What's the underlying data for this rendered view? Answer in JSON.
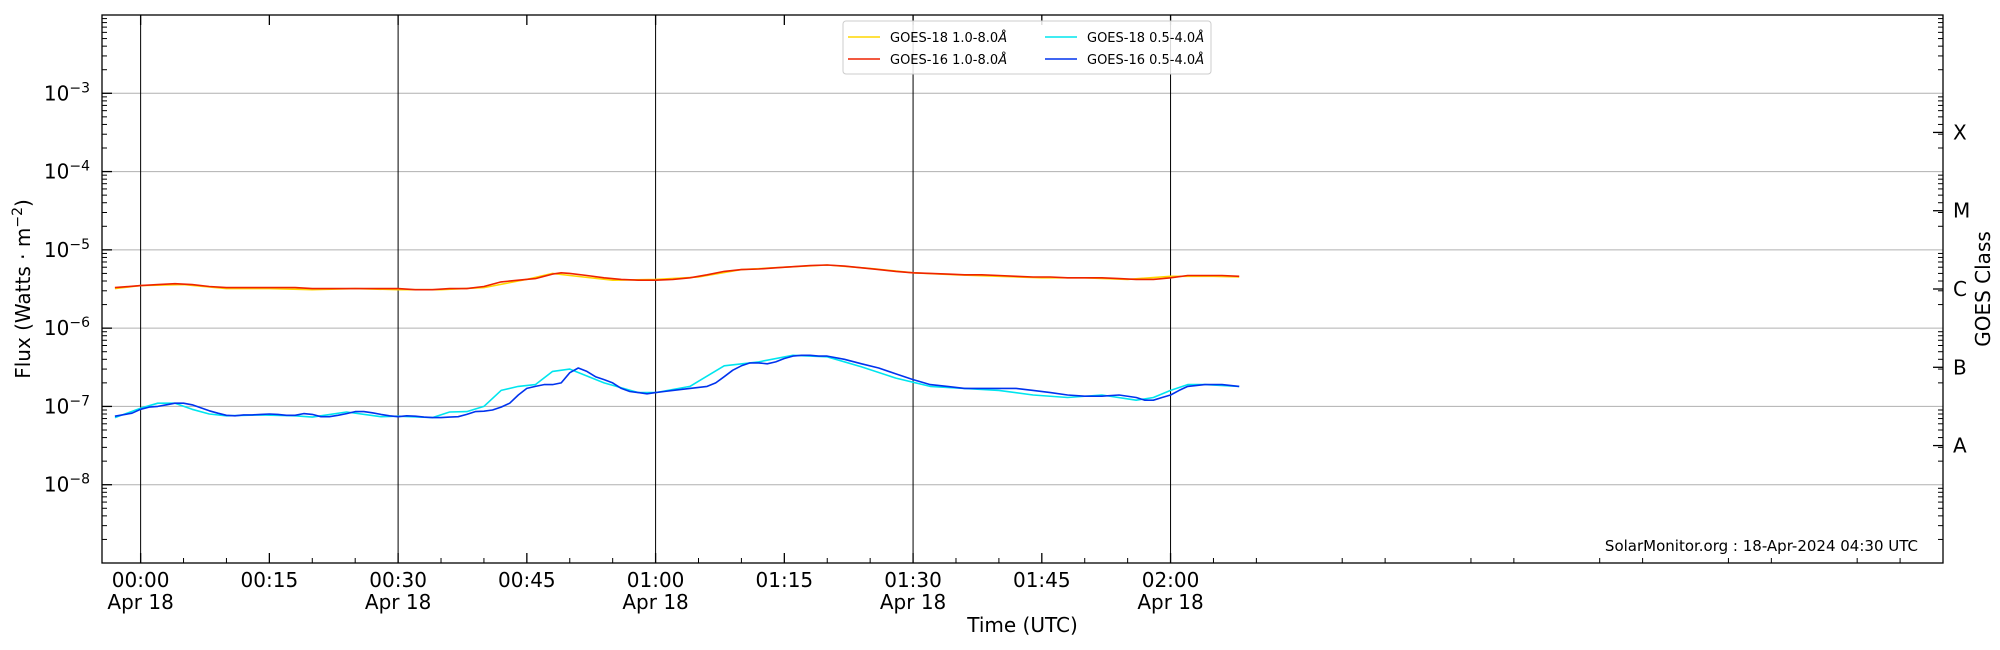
{
  "chart_data": {
    "type": "line",
    "xlabel": "Time (UTC)",
    "ylabel": "Flux (Watts · m",
    "ylabel_sup": "−2",
    "ylabel_close": ")",
    "y2label": "GOES Class",
    "annotation": "SolarMonitor.org : 18-Apr-2024 04:30 UTC",
    "yscale": "log",
    "ylim": [
      1e-09,
      0.01
    ],
    "xlim": [
      -4.5,
      210
    ],
    "grid": "horizontal at decades, vertical at 30-minute marks",
    "legend_position": "top-center",
    "x_ticks": [
      {
        "t": 0,
        "label1": "00:00",
        "label2": "Apr 18"
      },
      {
        "t": 15,
        "label1": "00:15",
        "label2": ""
      },
      {
        "t": 30,
        "label1": "00:30",
        "label2": "Apr 18"
      },
      {
        "t": 45,
        "label1": "00:45",
        "label2": ""
      },
      {
        "t": 60,
        "label1": "01:00",
        "label2": "Apr 18"
      },
      {
        "t": 75,
        "label1": "01:15",
        "label2": ""
      },
      {
        "t": 90,
        "label1": "01:30",
        "label2": "Apr 18"
      },
      {
        "t": 105,
        "label1": "01:45",
        "label2": ""
      },
      {
        "t": 120,
        "label1": "02:00",
        "label2": "Apr 18"
      }
    ],
    "y_ticks": [
      {
        "exp": -8,
        "base": "10",
        "sup": "−8"
      },
      {
        "exp": -7,
        "base": "10",
        "sup": "−7"
      },
      {
        "exp": -6,
        "base": "10",
        "sup": "−6"
      },
      {
        "exp": -5,
        "base": "10",
        "sup": "−5"
      },
      {
        "exp": -4,
        "base": "10",
        "sup": "−4"
      },
      {
        "exp": -3,
        "base": "10",
        "sup": "−3"
      }
    ],
    "goes_classes": [
      {
        "label": "A",
        "exp": -7.5
      },
      {
        "label": "B",
        "exp": -6.5
      },
      {
        "label": "C",
        "exp": -5.5
      },
      {
        "label": "M",
        "exp": -4.5
      },
      {
        "label": "X",
        "exp": -3.5
      }
    ],
    "series": [
      {
        "name": "GOES-18 1.0-8.0",
        "name_unit": "Å",
        "color": "#ffd700",
        "x": [
          -3,
          0,
          5,
          10,
          15,
          20,
          25,
          30,
          35,
          40,
          45,
          48,
          50,
          55,
          60,
          65,
          70,
          75,
          80,
          85,
          90,
          95,
          100,
          105,
          110,
          115,
          120,
          125,
          128
        ],
        "y": [
          3.2e-06,
          3.5e-06,
          3.6e-06,
          3.2e-06,
          3.2e-06,
          3.1e-06,
          3.2e-06,
          3.1e-06,
          3.1e-06,
          3.3e-06,
          4.2e-06,
          5e-06,
          4.7e-06,
          4.1e-06,
          4.2e-06,
          4.5e-06,
          5.6e-06,
          6e-06,
          6.4e-06,
          5.8e-06,
          5.1e-06,
          4.8e-06,
          4.6e-06,
          4.4e-06,
          4.4e-06,
          4.2e-06,
          4.6e-06,
          4.6e-06,
          4.5e-06
        ]
      },
      {
        "name": "GOES-16 1.0-8.0",
        "name_unit": "Å",
        "color": "#ee2200",
        "x": [
          -3,
          0,
          2,
          4,
          6,
          8,
          10,
          12,
          14,
          16,
          18,
          20,
          22,
          24,
          26,
          28,
          30,
          32,
          34,
          36,
          38,
          40,
          42,
          44,
          46,
          47,
          48,
          49,
          50,
          52,
          54,
          56,
          58,
          60,
          62,
          64,
          66,
          68,
          70,
          72,
          74,
          76,
          78,
          80,
          82,
          84,
          86,
          88,
          90,
          92,
          94,
          96,
          98,
          100,
          102,
          104,
          106,
          108,
          110,
          112,
          114,
          116,
          118,
          120,
          122,
          124,
          126,
          128
        ],
        "y": [
          3.3e-06,
          3.5e-06,
          3.6e-06,
          3.7e-06,
          3.6e-06,
          3.4e-06,
          3.3e-06,
          3.3e-06,
          3.3e-06,
          3.3e-06,
          3.3e-06,
          3.2e-06,
          3.2e-06,
          3.2e-06,
          3.2e-06,
          3.2e-06,
          3.2e-06,
          3.1e-06,
          3.1e-06,
          3.2e-06,
          3.2e-06,
          3.4e-06,
          3.9e-06,
          4.1e-06,
          4.3e-06,
          4.6e-06,
          4.9e-06,
          5.1e-06,
          5e-06,
          4.7e-06,
          4.4e-06,
          4.2e-06,
          4.1e-06,
          4.1e-06,
          4.2e-06,
          4.4e-06,
          4.8e-06,
          5.3e-06,
          5.6e-06,
          5.7e-06,
          5.9e-06,
          6.1e-06,
          6.3e-06,
          6.4e-06,
          6.2e-06,
          5.9e-06,
          5.6e-06,
          5.3e-06,
          5.1e-06,
          5e-06,
          4.9e-06,
          4.8e-06,
          4.8e-06,
          4.7e-06,
          4.6e-06,
          4.5e-06,
          4.5e-06,
          4.4e-06,
          4.4e-06,
          4.4e-06,
          4.3e-06,
          4.2e-06,
          4.2e-06,
          4.4e-06,
          4.7e-06,
          4.7e-06,
          4.7e-06,
          4.6e-06
        ]
      },
      {
        "name": "GOES-18 0.5-4.0",
        "name_unit": "Å",
        "color": "#00e5ee",
        "x": [
          -3,
          0,
          2,
          4,
          6,
          8,
          10,
          14,
          18,
          20,
          24,
          28,
          30,
          34,
          36,
          38,
          40,
          42,
          44,
          46,
          48,
          50,
          54,
          58,
          60,
          64,
          68,
          72,
          76,
          80,
          84,
          88,
          92,
          96,
          100,
          104,
          108,
          112,
          116,
          118,
          120,
          122,
          124,
          128
        ],
        "y": [
          7.2e-08,
          9.5e-08,
          1.1e-07,
          1.1e-07,
          9.2e-08,
          8e-08,
          7.6e-08,
          7.8e-08,
          7.6e-08,
          7.3e-08,
          8.5e-08,
          7.4e-08,
          7.5e-08,
          7.2e-08,
          8.5e-08,
          8.6e-08,
          1e-07,
          1.6e-07,
          1.8e-07,
          1.9e-07,
          2.8e-07,
          3e-07,
          2e-07,
          1.5e-07,
          1.5e-07,
          1.8e-07,
          3.3e-07,
          3.7e-07,
          4.5e-07,
          4.3e-07,
          3.2e-07,
          2.3e-07,
          1.8e-07,
          1.7e-07,
          1.6e-07,
          1.4e-07,
          1.3e-07,
          1.4e-07,
          1.2e-07,
          1.3e-07,
          1.6e-07,
          1.9e-07,
          1.9e-07,
          1.8e-07
        ]
      },
      {
        "name": "GOES-16 0.5-4.0",
        "name_unit": "Å",
        "color": "#0033ee",
        "x": [
          -3,
          -1,
          0,
          1,
          2,
          3,
          4,
          5,
          6,
          7,
          8,
          9,
          10,
          11,
          12,
          13,
          14,
          15,
          16,
          17,
          18,
          19,
          20,
          21,
          22,
          23,
          24,
          25,
          26,
          27,
          28,
          29,
          30,
          31,
          32,
          33,
          34,
          35,
          36,
          37,
          38,
          39,
          40,
          41,
          42,
          43,
          44,
          45,
          46,
          47,
          48,
          49,
          50,
          51,
          52,
          53,
          54,
          55,
          56,
          57,
          58,
          59,
          60,
          61,
          62,
          63,
          64,
          65,
          66,
          67,
          68,
          69,
          70,
          71,
          72,
          73,
          74,
          75,
          76,
          77,
          78,
          79,
          80,
          82,
          84,
          86,
          88,
          90,
          92,
          94,
          96,
          98,
          100,
          102,
          104,
          106,
          108,
          110,
          112,
          114,
          116,
          117,
          118,
          119,
          120,
          121,
          122,
          124,
          126,
          128
        ],
        "y": [
          7.5e-08,
          8.2e-08,
          9.2e-08,
          9.8e-08,
          1e-07,
          1.05e-07,
          1.1e-07,
          1.1e-07,
          1.05e-07,
          9.6e-08,
          8.8e-08,
          8.2e-08,
          7.7e-08,
          7.6e-08,
          7.8e-08,
          7.8e-08,
          7.9e-08,
          8e-08,
          7.9e-08,
          7.7e-08,
          7.7e-08,
          8.1e-08,
          7.9e-08,
          7.4e-08,
          7.4e-08,
          7.7e-08,
          8.1e-08,
          8.6e-08,
          8.6e-08,
          8.3e-08,
          7.9e-08,
          7.6e-08,
          7.4e-08,
          7.6e-08,
          7.5e-08,
          7.3e-08,
          7.2e-08,
          7.2e-08,
          7.3e-08,
          7.4e-08,
          7.9e-08,
          8.6e-08,
          8.7e-08,
          9e-08,
          9.8e-08,
          1.1e-07,
          1.4e-07,
          1.7e-07,
          1.8e-07,
          1.9e-07,
          1.9e-07,
          2e-07,
          2.7e-07,
          3.1e-07,
          2.8e-07,
          2.4e-07,
          2.2e-07,
          2e-07,
          1.7e-07,
          1.55e-07,
          1.5e-07,
          1.45e-07,
          1.5e-07,
          1.55e-07,
          1.6e-07,
          1.65e-07,
          1.7e-07,
          1.75e-07,
          1.8e-07,
          2e-07,
          2.4e-07,
          2.9e-07,
          3.3e-07,
          3.6e-07,
          3.6e-07,
          3.5e-07,
          3.7e-07,
          4.1e-07,
          4.4e-07,
          4.5e-07,
          4.5e-07,
          4.4e-07,
          4.4e-07,
          4e-07,
          3.5e-07,
          3.1e-07,
          2.6e-07,
          2.2e-07,
          1.9e-07,
          1.8e-07,
          1.7e-07,
          1.7e-07,
          1.7e-07,
          1.7e-07,
          1.6e-07,
          1.5e-07,
          1.4e-07,
          1.35e-07,
          1.35e-07,
          1.4e-07,
          1.3e-07,
          1.2e-07,
          1.2e-07,
          1.3e-07,
          1.4e-07,
          1.6e-07,
          1.8e-07,
          1.9e-07,
          1.9e-07,
          1.8e-07
        ]
      }
    ]
  }
}
